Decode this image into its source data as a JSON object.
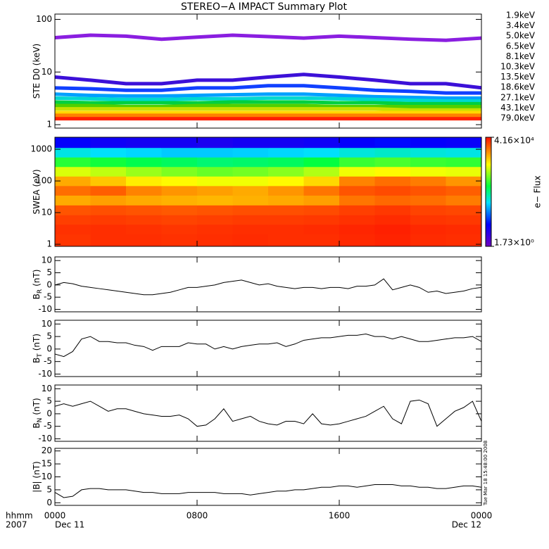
{
  "chart_data": [
    {
      "type": "multiline",
      "title": "STEREO−A IMPACT Summary Plot",
      "ylabel": "STE D0 (keV)",
      "ylog": true,
      "ylim": [
        0.86,
        126
      ],
      "yticks": [
        1,
        10,
        100
      ],
      "xlim": [
        0,
        24
      ],
      "xticks": [
        0,
        8,
        16,
        24
      ],
      "x": [
        0,
        2,
        4,
        6,
        8,
        10,
        12,
        14,
        16,
        18,
        20,
        22,
        24
      ],
      "series": [
        {
          "name": "1.9keV",
          "color": "#8a1ee0",
          "values": [
            45,
            50,
            48,
            42,
            46,
            50,
            47,
            44,
            48,
            45,
            42,
            40,
            44
          ]
        },
        {
          "name": "3.4keV",
          "color": "#3c10d8",
          "values": [
            8,
            7,
            6,
            6,
            7,
            7,
            8,
            9,
            8,
            7,
            6,
            6,
            5
          ]
        },
        {
          "name": "5.0keV",
          "color": "#1040ff",
          "values": [
            5,
            4.8,
            4.5,
            4.5,
            5,
            5,
            5.5,
            5.5,
            5,
            4.5,
            4.3,
            4,
            4
          ]
        },
        {
          "name": "6.5keV",
          "color": "#00a0ff",
          "values": [
            3.8,
            3.6,
            3.5,
            3.5,
            3.6,
            3.7,
            3.8,
            3.8,
            3.6,
            3.4,
            3.3,
            3.2,
            3.2
          ]
        },
        {
          "name": "8.1keV",
          "color": "#00d8d0",
          "values": [
            3.2,
            3.1,
            3,
            3,
            3.1,
            3.1,
            3.2,
            3.2,
            3.1,
            3,
            2.9,
            2.8,
            2.8
          ]
        },
        {
          "name": "10.3keV",
          "color": "#00d040",
          "values": [
            2.7,
            2.6,
            2.6,
            2.6,
            2.6,
            2.7,
            2.7,
            2.7,
            2.6,
            2.6,
            2.5,
            2.5,
            2.5
          ]
        },
        {
          "name": "13.5keV",
          "color": "#50d000",
          "values": [
            2.3,
            2.3,
            2.2,
            2.2,
            2.3,
            2.3,
            2.3,
            2.3,
            2.2,
            2.2,
            2.2,
            2.2,
            2.2
          ]
        },
        {
          "name": "18.6keV",
          "color": "#c8e000",
          "values": [
            2,
            2,
            2,
            2,
            2,
            2,
            2,
            2,
            2,
            2,
            1.9,
            1.9,
            1.9
          ]
        },
        {
          "name": "27.1keV",
          "color": "#ffd800",
          "values": [
            1.7,
            1.7,
            1.7,
            1.7,
            1.7,
            1.7,
            1.7,
            1.7,
            1.7,
            1.7,
            1.7,
            1.7,
            1.7
          ]
        },
        {
          "name": "43.1keV",
          "color": "#ff8000",
          "values": [
            1.5,
            1.5,
            1.5,
            1.5,
            1.5,
            1.5,
            1.5,
            1.5,
            1.5,
            1.5,
            1.5,
            1.5,
            1.5
          ]
        },
        {
          "name": "79.0keV",
          "color": "#ff2000",
          "values": [
            1.3,
            1.3,
            1.3,
            1.3,
            1.3,
            1.3,
            1.3,
            1.3,
            1.3,
            1.3,
            1.3,
            1.3,
            1.3
          ]
        }
      ]
    },
    {
      "type": "heatmap",
      "ylabel": "SWEA (eV)",
      "ylog": true,
      "ylim": [
        0.86,
        2400
      ],
      "yticks": [
        1,
        10,
        100,
        1000
      ],
      "xlim": [
        0,
        24
      ],
      "xticks": [
        0,
        8,
        16,
        24
      ],
      "x": [
        1,
        3,
        5,
        7,
        9,
        11,
        13,
        15,
        17,
        19,
        21,
        23
      ],
      "y": [
        1.5,
        3,
        6,
        12,
        25,
        50,
        100,
        200,
        400,
        800,
        1600
      ],
      "z": [
        [
          28000,
          30000,
          30000,
          29000,
          30000,
          31000,
          30000,
          30000,
          32000,
          34000,
          31000,
          30000
        ],
        [
          29000,
          30000,
          29000,
          28000,
          29000,
          30000,
          30000,
          31000,
          33000,
          35000,
          32000,
          31000
        ],
        [
          25000,
          26000,
          25000,
          24000,
          25000,
          26000,
          26000,
          27000,
          29000,
          31000,
          28000,
          27000
        ],
        [
          20000,
          21000,
          20000,
          19000,
          20000,
          21000,
          21000,
          22000,
          25000,
          27000,
          24000,
          23000
        ],
        [
          8000,
          9000,
          8000,
          7500,
          7000,
          7500,
          8000,
          9000,
          14000,
          16000,
          15000,
          13000
        ],
        [
          15000,
          18000,
          12000,
          10000,
          9000,
          8000,
          10000,
          14000,
          20000,
          22000,
          20000,
          18000
        ],
        [
          8000,
          6000,
          4000,
          3500,
          3000,
          3000,
          3500,
          5000,
          12000,
          15000,
          13000,
          10000
        ],
        [
          2500,
          2000,
          1500,
          1200,
          1000,
          1100,
          1300,
          1800,
          3000,
          3500,
          3000,
          2800
        ],
        [
          600,
          500,
          400,
          350,
          300,
          320,
          350,
          450,
          700,
          800,
          700,
          650
        ],
        [
          120,
          100,
          90,
          80,
          80,
          85,
          90,
          100,
          130,
          150,
          130,
          120
        ],
        [
          12,
          10,
          9,
          9,
          8,
          9,
          9,
          10,
          12,
          14,
          12,
          11
        ]
      ],
      "zlog": true,
      "zlim": [
        1.73,
        41600
      ],
      "zticks": [
        {
          "value": 41600,
          "label": "4.16×10⁴"
        },
        {
          "value": 1.73,
          "label": "1.73×10⁰"
        }
      ],
      "zlabel": "e− Flux"
    },
    {
      "type": "line",
      "ylabel": "B",
      "ylabel_sub": "R",
      "ylabel_unit": "(nT)",
      "ylim": [
        -11,
        11.5
      ],
      "yticks": [
        -10,
        -5,
        0,
        5,
        10
      ],
      "xlim": [
        0,
        24
      ],
      "xticks": [
        0,
        8,
        16,
        24
      ],
      "x": [
        0,
        0.5,
        1,
        1.5,
        2,
        2.5,
        3,
        3.5,
        4,
        4.5,
        5,
        5.5,
        6,
        6.5,
        7,
        7.5,
        8,
        8.5,
        9,
        9.5,
        10,
        10.5,
        11,
        11.5,
        12,
        12.5,
        13,
        13.5,
        14,
        14.5,
        15,
        15.5,
        16,
        16.5,
        17,
        17.5,
        18,
        18.5,
        19,
        19.5,
        20,
        20.5,
        21,
        21.5,
        22,
        22.5,
        23,
        23.5,
        24
      ],
      "values": [
        0,
        1,
        0.5,
        -0.5,
        -1,
        -1.5,
        -2,
        -2.5,
        -3,
        -3.5,
        -4,
        -4,
        -3.5,
        -3,
        -2,
        -1,
        -1,
        -0.5,
        0,
        1,
        1.5,
        2,
        1,
        0,
        0.5,
        -0.5,
        -1,
        -1.5,
        -1,
        -1,
        -1.5,
        -1,
        -1,
        -1.5,
        -0.5,
        -0.5,
        0,
        2.5,
        -2,
        -1,
        0,
        -1,
        -3,
        -2.5,
        -3.5,
        -3,
        -2.5,
        -1.5,
        -1
      ]
    },
    {
      "type": "line",
      "ylabel": "B",
      "ylabel_sub": "T",
      "ylabel_unit": "(nT)",
      "ylim": [
        -11,
        11.5
      ],
      "yticks": [
        -10,
        -5,
        0,
        5,
        10
      ],
      "xlim": [
        0,
        24
      ],
      "xticks": [
        0,
        8,
        16,
        24
      ],
      "x": [
        0,
        0.5,
        1,
        1.5,
        2,
        2.5,
        3,
        3.5,
        4,
        4.5,
        5,
        5.5,
        6,
        6.5,
        7,
        7.5,
        8,
        8.5,
        9,
        9.5,
        10,
        10.5,
        11,
        11.5,
        12,
        12.5,
        13,
        13.5,
        14,
        14.5,
        15,
        15.5,
        16,
        16.5,
        17,
        17.5,
        18,
        18.5,
        19,
        19.5,
        20,
        20.5,
        21,
        21.5,
        22,
        22.5,
        23,
        23.5,
        24
      ],
      "values": [
        -2,
        -3,
        -1,
        4,
        5,
        3,
        3,
        2.5,
        2.5,
        1.5,
        1,
        -0.5,
        1,
        1,
        1,
        2.5,
        2,
        2,
        0,
        1,
        0,
        1,
        1.5,
        2,
        2,
        2.5,
        1,
        2,
        3.5,
        4,
        4.5,
        4.5,
        5,
        5.5,
        5.5,
        6,
        5,
        5,
        4,
        5,
        4,
        3,
        3,
        3.5,
        4,
        4.5,
        4.5,
        5,
        3
      ]
    },
    {
      "type": "line",
      "ylabel": "B",
      "ylabel_sub": "N",
      "ylabel_unit": "(nT)",
      "ylim": [
        -11,
        11.5
      ],
      "yticks": [
        -10,
        -5,
        0,
        5,
        10
      ],
      "xlim": [
        0,
        24
      ],
      "xticks": [
        0,
        8,
        16,
        24
      ],
      "x": [
        0,
        0.5,
        1,
        1.5,
        2,
        2.5,
        3,
        3.5,
        4,
        4.5,
        5,
        5.5,
        6,
        6.5,
        7,
        7.5,
        8,
        8.5,
        9,
        9.5,
        10,
        10.5,
        11,
        11.5,
        12,
        12.5,
        13,
        13.5,
        14,
        14.5,
        15,
        15.5,
        16,
        16.5,
        17,
        17.5,
        18,
        18.5,
        19,
        19.5,
        20,
        20.5,
        21,
        21.5,
        22,
        22.5,
        23,
        23.5,
        24
      ],
      "values": [
        3,
        4,
        3,
        4,
        5,
        3,
        1,
        2,
        2,
        1,
        0,
        -0.5,
        -1,
        -1,
        -0.5,
        -2,
        -5,
        -4.5,
        -2,
        2,
        -3,
        -2,
        -1,
        -3,
        -4,
        -4.5,
        -3,
        -3,
        -4,
        0,
        -4,
        -4.5,
        -4,
        -3,
        -2,
        -1,
        1,
        3,
        -2,
        -4,
        5,
        5.5,
        4,
        -5,
        -2,
        1,
        2.5,
        5,
        -3
      ]
    },
    {
      "type": "line",
      "ylabel": "|B| (nT)",
      "ylim": [
        -1,
        21
      ],
      "yticks": [
        0,
        5,
        10,
        15,
        20
      ],
      "xlim": [
        0,
        24
      ],
      "xticks": [
        {
          "value": 0,
          "label": "0000"
        },
        {
          "value": 8,
          "label": "0800"
        },
        {
          "value": 16,
          "label": "1600"
        },
        {
          "value": 24,
          "label": "0000"
        }
      ],
      "x_dates": [
        {
          "value": 0,
          "label": "Dec 11"
        },
        {
          "value": 24,
          "label": "Dec 12"
        }
      ],
      "x": [
        0,
        0.5,
        1,
        1.5,
        2,
        2.5,
        3,
        3.5,
        4,
        4.5,
        5,
        5.5,
        6,
        6.5,
        7,
        7.5,
        8,
        8.5,
        9,
        9.5,
        10,
        10.5,
        11,
        11.5,
        12,
        12.5,
        13,
        13.5,
        14,
        14.5,
        15,
        15.5,
        16,
        16.5,
        17,
        17.5,
        18,
        18.5,
        19,
        19.5,
        20,
        20.5,
        21,
        21.5,
        22,
        22.5,
        23,
        23.5,
        24
      ],
      "values": [
        4,
        2,
        2.5,
        5,
        5.5,
        5.5,
        5,
        5,
        5,
        4.5,
        4,
        4,
        3.5,
        3.5,
        3.5,
        4,
        4,
        4,
        4,
        3.5,
        3.5,
        3.5,
        3,
        3.5,
        4,
        4.5,
        4.5,
        5,
        5,
        5.5,
        6,
        6,
        6.5,
        6.5,
        6,
        6.5,
        7,
        7,
        7,
        6.5,
        6.5,
        6,
        6,
        5.5,
        5.5,
        6,
        6.5,
        6.5,
        6
      ]
    }
  ],
  "axis_note": [
    "hhmm",
    "2007"
  ],
  "timestamp": "Tue Mar 18 15:48:00 2008"
}
